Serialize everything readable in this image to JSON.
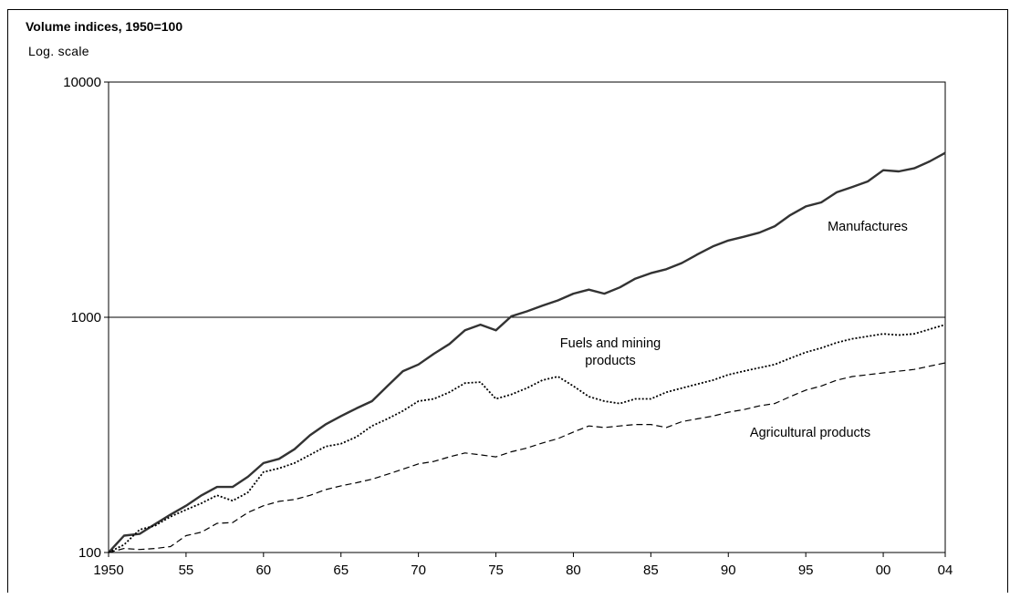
{
  "chart_data": {
    "type": "line",
    "title": "Volume indices, 1950=100",
    "subtitle": "Log. scale",
    "y_scale": "log",
    "ylim": [
      100,
      10000
    ],
    "xlim": [
      1950,
      2004
    ],
    "y_ticks": [
      "100",
      "1000",
      "10000"
    ],
    "x_ticks": [
      "1950",
      "55",
      "60",
      "65",
      "70",
      "75",
      "80",
      "85",
      "90",
      "95",
      "00",
      "04"
    ],
    "grid": "horizontal line at 1000",
    "legend": "none (series labeled directly on the chart)",
    "colors": {
      "manufactures": "#333333",
      "fuels": "#000000",
      "agricultural": "#000000"
    },
    "series": [
      {
        "key": "manufactures",
        "label_lines": [
          "Manufactures"
        ],
        "style": "solid",
        "x": [
          1950,
          1951,
          1952,
          1953,
          1954,
          1955,
          1956,
          1957,
          1958,
          1959,
          1960,
          1961,
          1962,
          1963,
          1964,
          1965,
          1966,
          1967,
          1968,
          1969,
          1970,
          1971,
          1972,
          1973,
          1974,
          1975,
          1976,
          1977,
          1978,
          1979,
          1980,
          1981,
          1982,
          1983,
          1984,
          1985,
          1986,
          1987,
          1988,
          1989,
          1990,
          1991,
          1992,
          1993,
          1994,
          1995,
          1996,
          1997,
          1998,
          1999,
          2000,
          2001,
          2002,
          2003,
          2004
        ],
        "values": [
          100,
          118,
          120,
          132,
          145,
          158,
          175,
          190,
          190,
          210,
          240,
          250,
          275,
          315,
          350,
          380,
          410,
          440,
          510,
          590,
          630,
          700,
          770,
          880,
          930,
          880,
          1010,
          1060,
          1120,
          1180,
          1260,
          1310,
          1260,
          1340,
          1460,
          1540,
          1600,
          1700,
          1850,
          2000,
          2120,
          2200,
          2290,
          2440,
          2720,
          2960,
          3080,
          3400,
          3580,
          3780,
          4220,
          4170,
          4300,
          4600,
          5000
        ]
      },
      {
        "key": "fuels",
        "label_lines": [
          "Fuels and mining",
          "products"
        ],
        "style": "dotted",
        "x": [
          1950,
          1951,
          1952,
          1953,
          1954,
          1955,
          1956,
          1957,
          1958,
          1959,
          1960,
          1961,
          1962,
          1963,
          1964,
          1965,
          1966,
          1967,
          1968,
          1969,
          1970,
          1971,
          1972,
          1973,
          1974,
          1975,
          1976,
          1977,
          1978,
          1979,
          1980,
          1981,
          1982,
          1983,
          1984,
          1985,
          1986,
          1987,
          1988,
          1989,
          1990,
          1991,
          1992,
          1993,
          1994,
          1995,
          1996,
          1997,
          1998,
          1999,
          2000,
          2001,
          2002,
          2003,
          2004
        ],
        "values": [
          100,
          108,
          125,
          130,
          142,
          152,
          162,
          175,
          166,
          180,
          220,
          228,
          240,
          260,
          282,
          290,
          310,
          345,
          370,
          400,
          440,
          450,
          480,
          525,
          530,
          450,
          470,
          500,
          540,
          560,
          510,
          460,
          440,
          430,
          450,
          450,
          480,
          500,
          520,
          540,
          570,
          590,
          610,
          630,
          670,
          710,
          740,
          780,
          810,
          830,
          850,
          840,
          850,
          890,
          930
        ]
      },
      {
        "key": "agricultural",
        "label_lines": [
          "Agricultural products"
        ],
        "style": "dashed",
        "x": [
          1950,
          1951,
          1952,
          1953,
          1954,
          1955,
          1956,
          1957,
          1958,
          1959,
          1960,
          1961,
          1962,
          1963,
          1964,
          1965,
          1966,
          1967,
          1968,
          1969,
          1970,
          1971,
          1972,
          1973,
          1974,
          1975,
          1976,
          1977,
          1978,
          1979,
          1980,
          1981,
          1982,
          1983,
          1984,
          1985,
          1986,
          1987,
          1988,
          1989,
          1990,
          1991,
          1992,
          1993,
          1994,
          1995,
          1996,
          1997,
          1998,
          1999,
          2000,
          2001,
          2002,
          2003,
          2004
        ],
        "values": [
          100,
          104,
          103,
          104,
          106,
          118,
          122,
          133,
          134,
          148,
          158,
          165,
          168,
          175,
          185,
          192,
          198,
          205,
          215,
          226,
          238,
          244,
          255,
          265,
          260,
          255,
          268,
          278,
          292,
          305,
          325,
          345,
          340,
          345,
          350,
          350,
          340,
          360,
          370,
          380,
          395,
          405,
          420,
          430,
          460,
          490,
          510,
          540,
          560,
          570,
          580,
          590,
          600,
          620,
          640
        ]
      }
    ]
  }
}
